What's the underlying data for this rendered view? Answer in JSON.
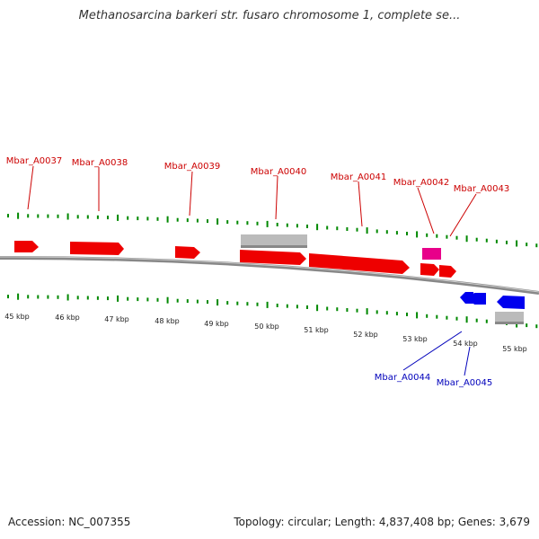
{
  "title": "Methanosarcina barkeri str. fusaro chromosome 1, complete se...",
  "footer": {
    "accession": "Accession: NC_007355",
    "summary": "Topology: circular; Length: 4,837,408 bp; Genes: 3,679"
  },
  "colors": {
    "forward_gene": "#ee0000",
    "reverse_gene": "#0000ee",
    "pseudo_feature": "#bbbbbb",
    "highlight_gene": "#e8008a",
    "backbone": "#888888",
    "tick": "#008800",
    "forward_label": "#cc0000",
    "reverse_label": "#0000bb",
    "kbp_label": "#222222"
  },
  "kbp_labels": [
    "45 kbp",
    "46 kbp",
    "47 kbp",
    "48 kbp",
    "49 kbp",
    "50 kbp",
    "51 kbp",
    "52 kbp",
    "53 kbp",
    "54 kbp",
    "55 kbp"
  ],
  "forward_labels": [
    "Mbar_A0037",
    "Mbar_A0038",
    "Mbar_A0039",
    "Mbar_A0040",
    "Mbar_A0041",
    "Mbar_A0042",
    "Mbar_A0043"
  ],
  "reverse_labels": [
    "Mbar_A0044",
    "Mbar_A0045"
  ]
}
